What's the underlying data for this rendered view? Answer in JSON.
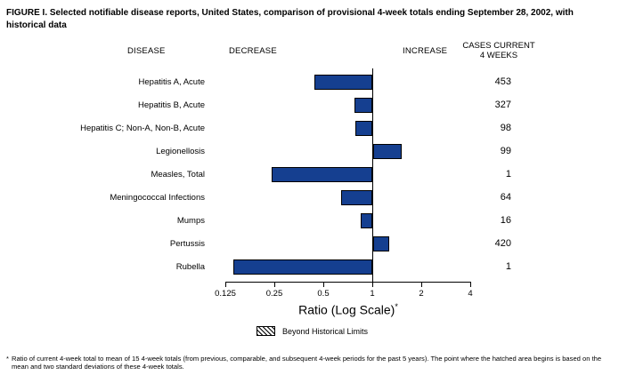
{
  "title": "FIGURE I. Selected notifiable disease reports, United States, comparison of provisional 4-week totals ending September 28, 2002, with historical data",
  "columns": {
    "disease": "DISEASE",
    "decrease": "DECREASE",
    "increase": "INCREASE",
    "cases_line1": "CASES CURRENT",
    "cases_line2": "4 WEEKS"
  },
  "chart_data": {
    "type": "bar",
    "orientation": "horizontal",
    "x_scale": "log2",
    "baseline": 1,
    "xlim": [
      0.125,
      4
    ],
    "x_ticks": [
      "0.125",
      "0.25",
      "0.5",
      "1",
      "2",
      "4"
    ],
    "x_tick_values": [
      0.125,
      0.25,
      0.5,
      1,
      2,
      4
    ],
    "xlabel": "Ratio (Log Scale)",
    "xlabel_footnote_marker": "*",
    "bar_color": "#153F90",
    "categories": [
      "Hepatitis A, Acute",
      "Hepatitis B, Acute",
      "Hepatitis C; Non-A, Non-B, Acute",
      "Legionellosis",
      "Measles, Total",
      "Meningococcal Infections",
      "Mumps",
      "Pertussis",
      "Rubella"
    ],
    "series": [
      {
        "name": "Ratio (current 4-week total to historical mean)",
        "values": [
          0.44,
          0.78,
          0.79,
          1.5,
          0.24,
          0.64,
          0.85,
          1.25,
          0.14
        ]
      },
      {
        "name": "Cases current 4 weeks",
        "values": [
          453,
          327,
          98,
          99,
          1,
          64,
          16,
          420,
          1
        ]
      }
    ],
    "legend_position": "bottom",
    "grid": false
  },
  "legend": {
    "beyond_limits_label": "Beyond Historical Limits"
  },
  "footnote": {
    "marker": "*",
    "text": "Ratio of current 4-week total to mean of 15 4-week totals (from previous, comparable, and subsequent 4-week periods for the past 5 years). The point where the hatched area begins is based on the mean and two standard deviations of these 4-week totals."
  }
}
